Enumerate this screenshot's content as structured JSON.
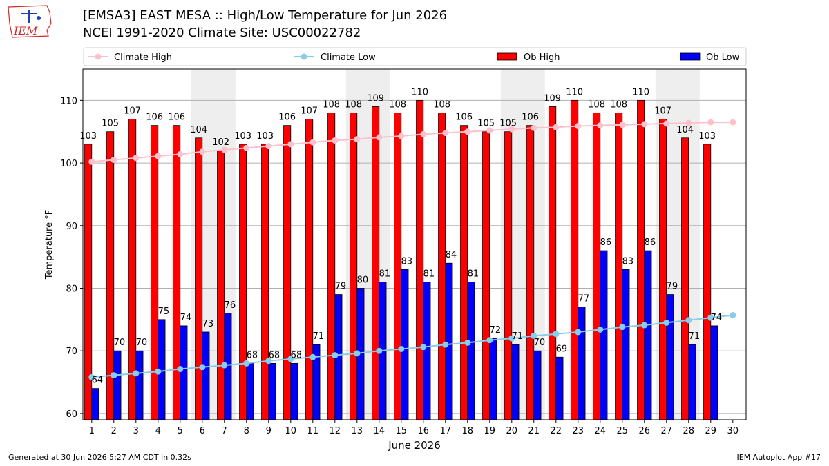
{
  "header": {
    "title_line1": "[EMSA3] EAST MESA :: High/Low Temperature for Jun 2026",
    "title_line2": "NCEI 1991-2020 Climate Site: USC00022782"
  },
  "logo": {
    "text": "IEM",
    "color": "#d62728"
  },
  "footer": {
    "generated": "Generated at 30 Jun 2026 5:27 AM CDT in 0.32s",
    "app": "IEM Autoplot App #17"
  },
  "chart_data": {
    "type": "bar",
    "xlabel": "June 2026",
    "ylabel": "Temperature °F",
    "ylim": [
      59,
      115
    ],
    "yticks": [
      60,
      70,
      80,
      90,
      100,
      110
    ],
    "grid": true,
    "legend_placement": "top",
    "weekend_shading_days": [
      6,
      7,
      13,
      14,
      20,
      21,
      27,
      28
    ],
    "x": [
      1,
      2,
      3,
      4,
      5,
      6,
      7,
      8,
      9,
      10,
      11,
      12,
      13,
      14,
      15,
      16,
      17,
      18,
      19,
      20,
      21,
      22,
      23,
      24,
      25,
      26,
      27,
      28,
      29,
      30
    ],
    "series": [
      {
        "name": "Ob High",
        "kind": "bar",
        "color": "#ff0000",
        "values": [
          103,
          105,
          107,
          106,
          106,
          104,
          102,
          103,
          103,
          106,
          107,
          108,
          108,
          109,
          108,
          110,
          108,
          106,
          105,
          105,
          106,
          109,
          110,
          108,
          108,
          110,
          107,
          104,
          103,
          null
        ]
      },
      {
        "name": "Ob Low",
        "kind": "bar",
        "color": "#0000ff",
        "values": [
          64,
          70,
          70,
          75,
          74,
          73,
          76,
          68,
          68,
          68,
          71,
          79,
          80,
          81,
          83,
          81,
          84,
          81,
          72,
          71,
          70,
          69,
          77,
          86,
          83,
          86,
          79,
          71,
          74,
          null
        ]
      },
      {
        "name": "Climate High",
        "kind": "line",
        "color": "#ffc0cb",
        "values": [
          100.2,
          100.5,
          100.8,
          101.1,
          101.4,
          101.8,
          102.1,
          102.4,
          102.7,
          103.0,
          103.3,
          103.6,
          103.8,
          104.1,
          104.3,
          104.6,
          104.8,
          105.0,
          105.2,
          105.4,
          105.6,
          105.7,
          105.9,
          106.0,
          106.1,
          106.2,
          106.3,
          106.4,
          106.5,
          106.5
        ]
      },
      {
        "name": "Climate Low",
        "kind": "line",
        "color": "#87ceeb",
        "values": [
          65.8,
          66.1,
          66.4,
          66.7,
          67.1,
          67.4,
          67.7,
          68.0,
          68.4,
          68.7,
          69.0,
          69.3,
          69.6,
          70.0,
          70.3,
          70.6,
          71.0,
          71.3,
          71.7,
          72.0,
          72.4,
          72.7,
          73.0,
          73.4,
          73.8,
          74.1,
          74.5,
          74.9,
          75.3,
          75.7
        ]
      }
    ]
  }
}
